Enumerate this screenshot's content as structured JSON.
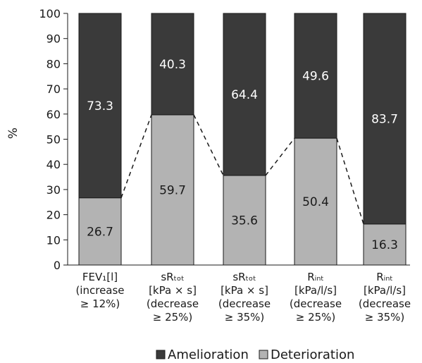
{
  "chart_data": {
    "type": "bar",
    "stacked": true,
    "ylabel": "%",
    "ylim": [
      0,
      100
    ],
    "yticks": [
      0,
      10,
      20,
      30,
      40,
      50,
      60,
      70,
      80,
      90,
      100
    ],
    "categories": [
      [
        "FEV₁[l]",
        "(increase",
        "≥ 12%)"
      ],
      [
        "sRₜₒₜ",
        "[kPa × s]",
        "(decrease",
        "≥ 25%)"
      ],
      [
        "sRₜₒₜ",
        "[kPa × s]",
        "(decrease",
        "≥ 35%)"
      ],
      [
        "Rᵢₙₜ",
        "[kPa/l/s]",
        "(decrease",
        "≥ 25%)"
      ],
      [
        "Rᵢₙₜ",
        "[kPa/l/s]",
        "(decrease",
        "≥ 35%)"
      ]
    ],
    "series": [
      {
        "name": "Deterioration",
        "values": [
          26.7,
          59.7,
          35.6,
          50.4,
          16.3
        ],
        "color": "#b3b3b3",
        "label_color": "#1a1a1a"
      },
      {
        "name": "Amelioration",
        "values": [
          73.3,
          40.3,
          64.4,
          49.6,
          83.7
        ],
        "color": "#3a3a3a",
        "label_color": "#ffffff"
      }
    ],
    "legend": {
      "placement": "bottom",
      "order": [
        "Amelioration",
        "Deterioration"
      ]
    },
    "connector": "dashed line linking tops of Deterioration segments",
    "grid": false
  }
}
